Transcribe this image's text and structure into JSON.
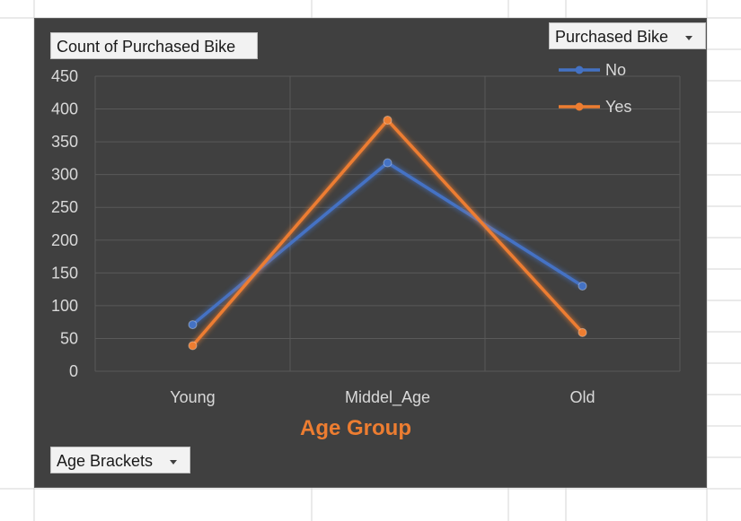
{
  "pivot_buttons": {
    "value_field": "Count of Purchased Bike",
    "legend_field": "Purchased Bike",
    "axis_field": "Age Brackets"
  },
  "colors": {
    "background": "#404040",
    "series_no": "#4472c4",
    "series_yes": "#ed7d31",
    "axis_title": "#ed7d31",
    "text": "#d9d9d9",
    "grid": "#595959"
  },
  "chart_data": {
    "type": "line",
    "title": "",
    "xlabel": "Age Group",
    "ylabel": "",
    "categories": [
      "Young",
      "Middel_Age",
      "Old"
    ],
    "ylim": [
      0,
      450
    ],
    "yticks": [
      0,
      50,
      100,
      150,
      200,
      250,
      300,
      350,
      400,
      450
    ],
    "grid": true,
    "legend_position": "top-right",
    "series": [
      {
        "name": "No",
        "values": [
          71,
          318,
          130
        ],
        "color": "#4472c4"
      },
      {
        "name": "Yes",
        "values": [
          39,
          383,
          59
        ],
        "color": "#ed7d31"
      }
    ]
  }
}
